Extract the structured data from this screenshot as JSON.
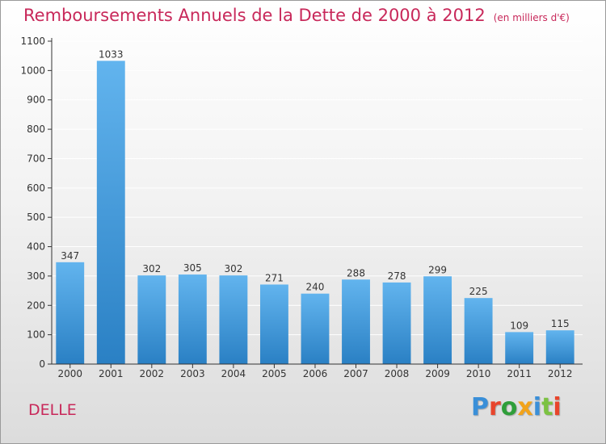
{
  "header": {
    "title": "Remboursements Annuels de la Dette de 2000 à 2012",
    "unit_note": "(en milliers d'€)"
  },
  "commune": "DELLE",
  "logo": {
    "text": "Proxiti",
    "letter_colors": [
      "#3a8fd8",
      "#e8452c",
      "#2f9e3a",
      "#f2a31a",
      "#3a8fd8",
      "#7cc242",
      "#e8452c"
    ]
  },
  "colors": {
    "bar_light": "#62b4ee",
    "bar_dark": "#2a80c4",
    "axis": "#333333",
    "grid": "#ffffff"
  },
  "chart_data": {
    "type": "bar",
    "title": "Remboursements Annuels de la Dette de 2000 à 2012",
    "categories": [
      "2000",
      "2001",
      "2002",
      "2003",
      "2004",
      "2005",
      "2006",
      "2007",
      "2008",
      "2009",
      "2010",
      "2011",
      "2012"
    ],
    "values": [
      347,
      1033,
      302,
      305,
      302,
      271,
      240,
      288,
      278,
      299,
      225,
      109,
      115
    ],
    "ylim": [
      0,
      1100
    ],
    "yticks": [
      0,
      100,
      200,
      300,
      400,
      500,
      600,
      700,
      800,
      900,
      1000,
      1100
    ],
    "grid": true,
    "xlabel": "",
    "ylabel": ""
  }
}
